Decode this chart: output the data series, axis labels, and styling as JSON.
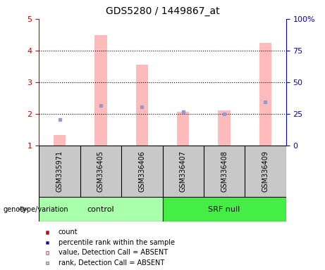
{
  "title": "GDS5280 / 1449867_at",
  "samples": [
    "GSM335971",
    "GSM336405",
    "GSM336406",
    "GSM336407",
    "GSM336408",
    "GSM336409"
  ],
  "group_control_idx": [
    0,
    1,
    2
  ],
  "group_srf_idx": [
    3,
    4,
    5
  ],
  "group_control_label": "control",
  "group_srf_label": "SRF null",
  "group_control_color": "#AAFFAA",
  "group_srf_color": "#44EE44",
  "ylim_left": [
    1,
    5
  ],
  "ylim_right": [
    0,
    100
  ],
  "yticks_left": [
    1,
    2,
    3,
    4,
    5
  ],
  "yticks_right": [
    0,
    25,
    50,
    75,
    100
  ],
  "ytick_labels_right": [
    "0",
    "25",
    "50",
    "75",
    "100%"
  ],
  "bar_bottom": 1.0,
  "pink_bar_tops": [
    1.35,
    4.48,
    3.55,
    2.08,
    2.12,
    4.25
  ],
  "blue_square_y": [
    1.83,
    2.27,
    2.22,
    2.07,
    2.0,
    2.38
  ],
  "pink_bar_color": "#FFBBBB",
  "blue_square_color": "#9999CC",
  "bar_width": 0.3,
  "left_tick_color": "#CC0000",
  "right_tick_color": "#0000CC",
  "sample_box_color": "#C8C8C8",
  "legend_items": [
    {
      "label": "count",
      "color": "#CC0000"
    },
    {
      "label": "percentile rank within the sample",
      "color": "#0000CC"
    },
    {
      "label": "value, Detection Call = ABSENT",
      "color": "#FFBBBB"
    },
    {
      "label": "rank, Detection Call = ABSENT",
      "color": "#BBBBDD"
    }
  ],
  "genotype_label": "genotype/variation"
}
